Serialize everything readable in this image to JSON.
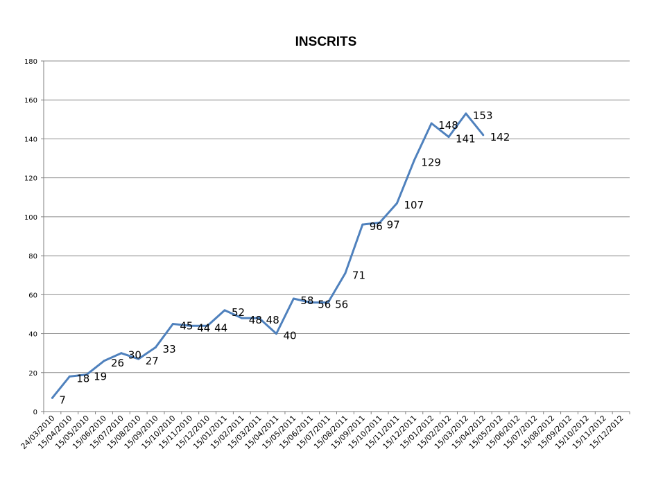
{
  "chart_data": {
    "type": "line",
    "title": "INSCRITS",
    "xlabel": "",
    "ylabel": "",
    "ylim": [
      0,
      180
    ],
    "ytick_step": 20,
    "grid": true,
    "legend": "none",
    "line_color": "#4f81bd",
    "categories": [
      "24/03/2010",
      "15/04/2010",
      "15/05/2010",
      "15/06/2010",
      "15/07/2010",
      "15/08/2010",
      "15/09/2010",
      "15/10/2010",
      "15/11/2010",
      "15/12/2010",
      "15/01/2011",
      "15/02/2011",
      "15/03/2011",
      "15/04/2011",
      "15/05/2011",
      "15/06/2011",
      "15/07/2011",
      "15/08/2011",
      "15/09/2011",
      "15/10/2011",
      "15/11/2011",
      "15/12/2011",
      "15/01/2012",
      "15/02/2012",
      "15/03/2012",
      "15/04/2012",
      "15/05/2012",
      "15/06/2012",
      "15/07/2012",
      "15/08/2012",
      "15/09/2012",
      "15/10/2012",
      "15/11/2012",
      "15/12/2012"
    ],
    "series": [
      {
        "values": [
          7,
          18,
          19,
          26,
          30,
          27,
          33,
          45,
          44,
          44,
          52,
          48,
          48,
          40,
          58,
          56,
          56,
          71,
          96,
          97,
          107,
          129,
          148,
          141,
          153,
          142,
          null,
          null,
          null,
          null,
          null,
          null,
          null,
          null
        ]
      }
    ]
  }
}
